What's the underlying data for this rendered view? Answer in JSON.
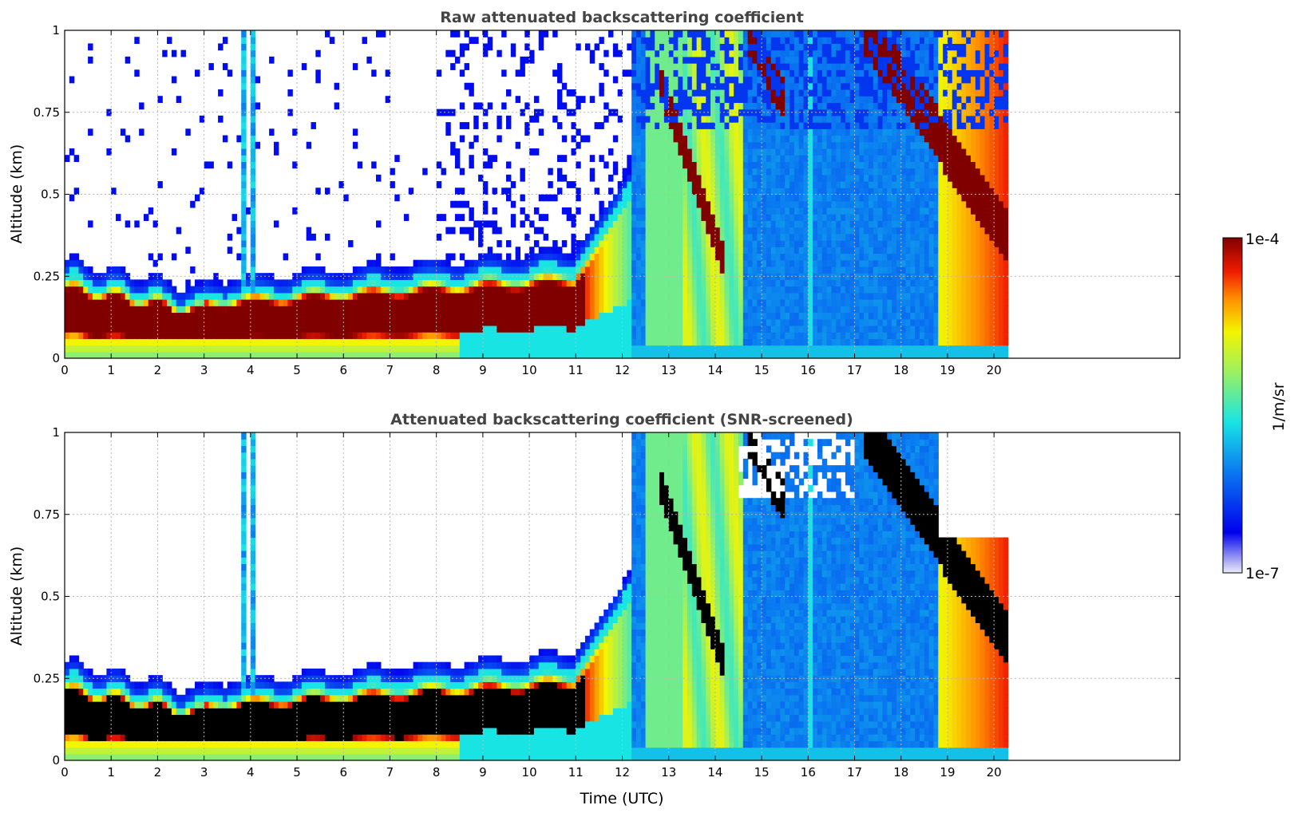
{
  "chart_data": [
    {
      "type": "heatmap",
      "title": "Raw attenuated backscattering coefficient",
      "xlabel": "",
      "ylabel": "Altitude (km)",
      "xlim": [
        0,
        24
      ],
      "ylim": [
        0,
        1
      ],
      "x_ticks": [
        "0",
        "1",
        "2",
        "3",
        "4",
        "5",
        "6",
        "7",
        "8",
        "9",
        "10",
        "11",
        "12",
        "13",
        "14",
        "15",
        "16",
        "17",
        "18",
        "19",
        "20"
      ],
      "y_ticks": [
        "0",
        "0.25",
        "0.5",
        "0.75",
        "1"
      ],
      "grid": true,
      "data_end_time": 20.3,
      "screened": false
    },
    {
      "type": "heatmap",
      "title": "Attenuated backscattering coefficient (SNR-screened)",
      "xlabel": "Time (UTC)",
      "ylabel": "Altitude (km)",
      "xlim": [
        0,
        24
      ],
      "ylim": [
        0,
        1
      ],
      "x_ticks": [
        "0",
        "1",
        "2",
        "3",
        "4",
        "5",
        "6",
        "7",
        "8",
        "9",
        "10",
        "11",
        "12",
        "13",
        "14",
        "15",
        "16",
        "17",
        "18",
        "19",
        "20"
      ],
      "y_ticks": [
        "0",
        "0.25",
        "0.5",
        "0.75",
        "1"
      ],
      "grid": true,
      "data_end_time": 20.3,
      "screened": true
    }
  ],
  "colorbar": {
    "label": "1/m/sr",
    "max_label": "1e-4",
    "min_label": "1e-7",
    "scale": "log",
    "colormap": "jet"
  }
}
